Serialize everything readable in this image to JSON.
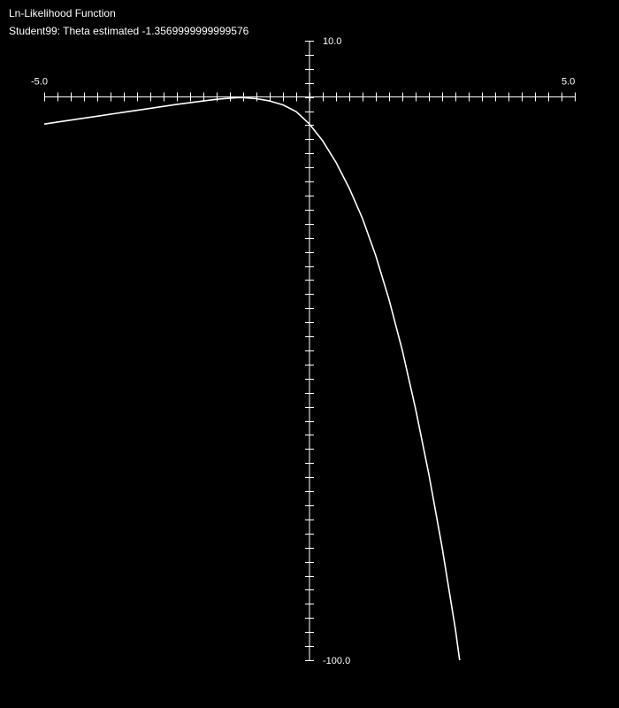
{
  "header": {
    "title": "Ln-Likelihood Function",
    "subtitle": "Student99: Theta estimated -1.3569999999999576"
  },
  "colors": {
    "background": "#000000",
    "foreground": "#ffffff"
  },
  "chart_data": {
    "type": "line",
    "title": "Ln-Likelihood Function",
    "subtitle": "Student99: Theta estimated -1.3569999999999576",
    "xlim": [
      -5.0,
      5.0
    ],
    "ylim": [
      -100.0,
      10.0
    ],
    "x_min_label": "-5.0",
    "x_max_label": "5.0",
    "y_max_label": "10.0",
    "y_min_label": "-100.0",
    "grid": false,
    "legend": "none",
    "series": [
      {
        "points": [
          [
            -5.0,
            -4.8
          ],
          [
            -4.5,
            -4.1
          ],
          [
            -4.0,
            -3.4
          ],
          [
            -3.5,
            -2.7
          ],
          [
            -3.0,
            -2.0
          ],
          [
            -2.5,
            -1.3
          ],
          [
            -2.0,
            -0.7
          ],
          [
            -1.75,
            -0.4
          ],
          [
            -1.5,
            -0.2
          ],
          [
            -1.36,
            -0.1
          ],
          [
            -1.25,
            -0.1
          ],
          [
            -1.0,
            -0.3
          ],
          [
            -0.75,
            -0.7
          ],
          [
            -0.5,
            -1.4
          ],
          [
            -0.25,
            -2.6
          ],
          [
            0.0,
            -4.8
          ],
          [
            0.25,
            -7.8
          ],
          [
            0.5,
            -11.6
          ],
          [
            0.75,
            -16.2
          ],
          [
            1.0,
            -21.6
          ],
          [
            1.25,
            -28.2
          ],
          [
            1.5,
            -36.0
          ],
          [
            1.75,
            -45.0
          ],
          [
            2.0,
            -55.4
          ],
          [
            2.25,
            -67.0
          ],
          [
            2.5,
            -80.0
          ],
          [
            2.75,
            -94.5
          ],
          [
            2.83,
            -100.0
          ]
        ]
      }
    ]
  }
}
